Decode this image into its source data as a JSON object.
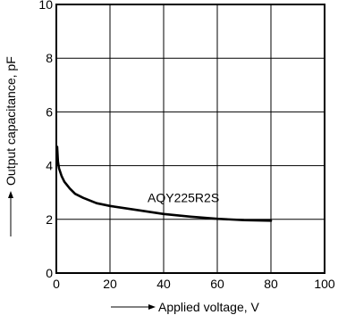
{
  "chart_data": {
    "type": "line",
    "xlabel": "Applied voltage, V",
    "ylabel": "Output capacitance, pF",
    "xlim": [
      0,
      100
    ],
    "ylim": [
      0,
      10
    ],
    "xticks": [
      0,
      20,
      40,
      60,
      80,
      100
    ],
    "yticks": [
      0,
      2,
      4,
      6,
      8,
      10
    ],
    "grid": true,
    "series": [
      {
        "name": "AQY225R2S",
        "x": [
          0.3,
          0.6,
          1,
          2,
          3,
          5,
          7,
          10,
          15,
          20,
          30,
          40,
          50,
          60,
          70,
          80
        ],
        "y": [
          4.7,
          4.15,
          3.9,
          3.6,
          3.4,
          3.15,
          2.95,
          2.8,
          2.6,
          2.5,
          2.35,
          2.2,
          2.1,
          2.02,
          1.97,
          1.95
        ]
      }
    ],
    "curve_label": "AQY225R2S"
  }
}
